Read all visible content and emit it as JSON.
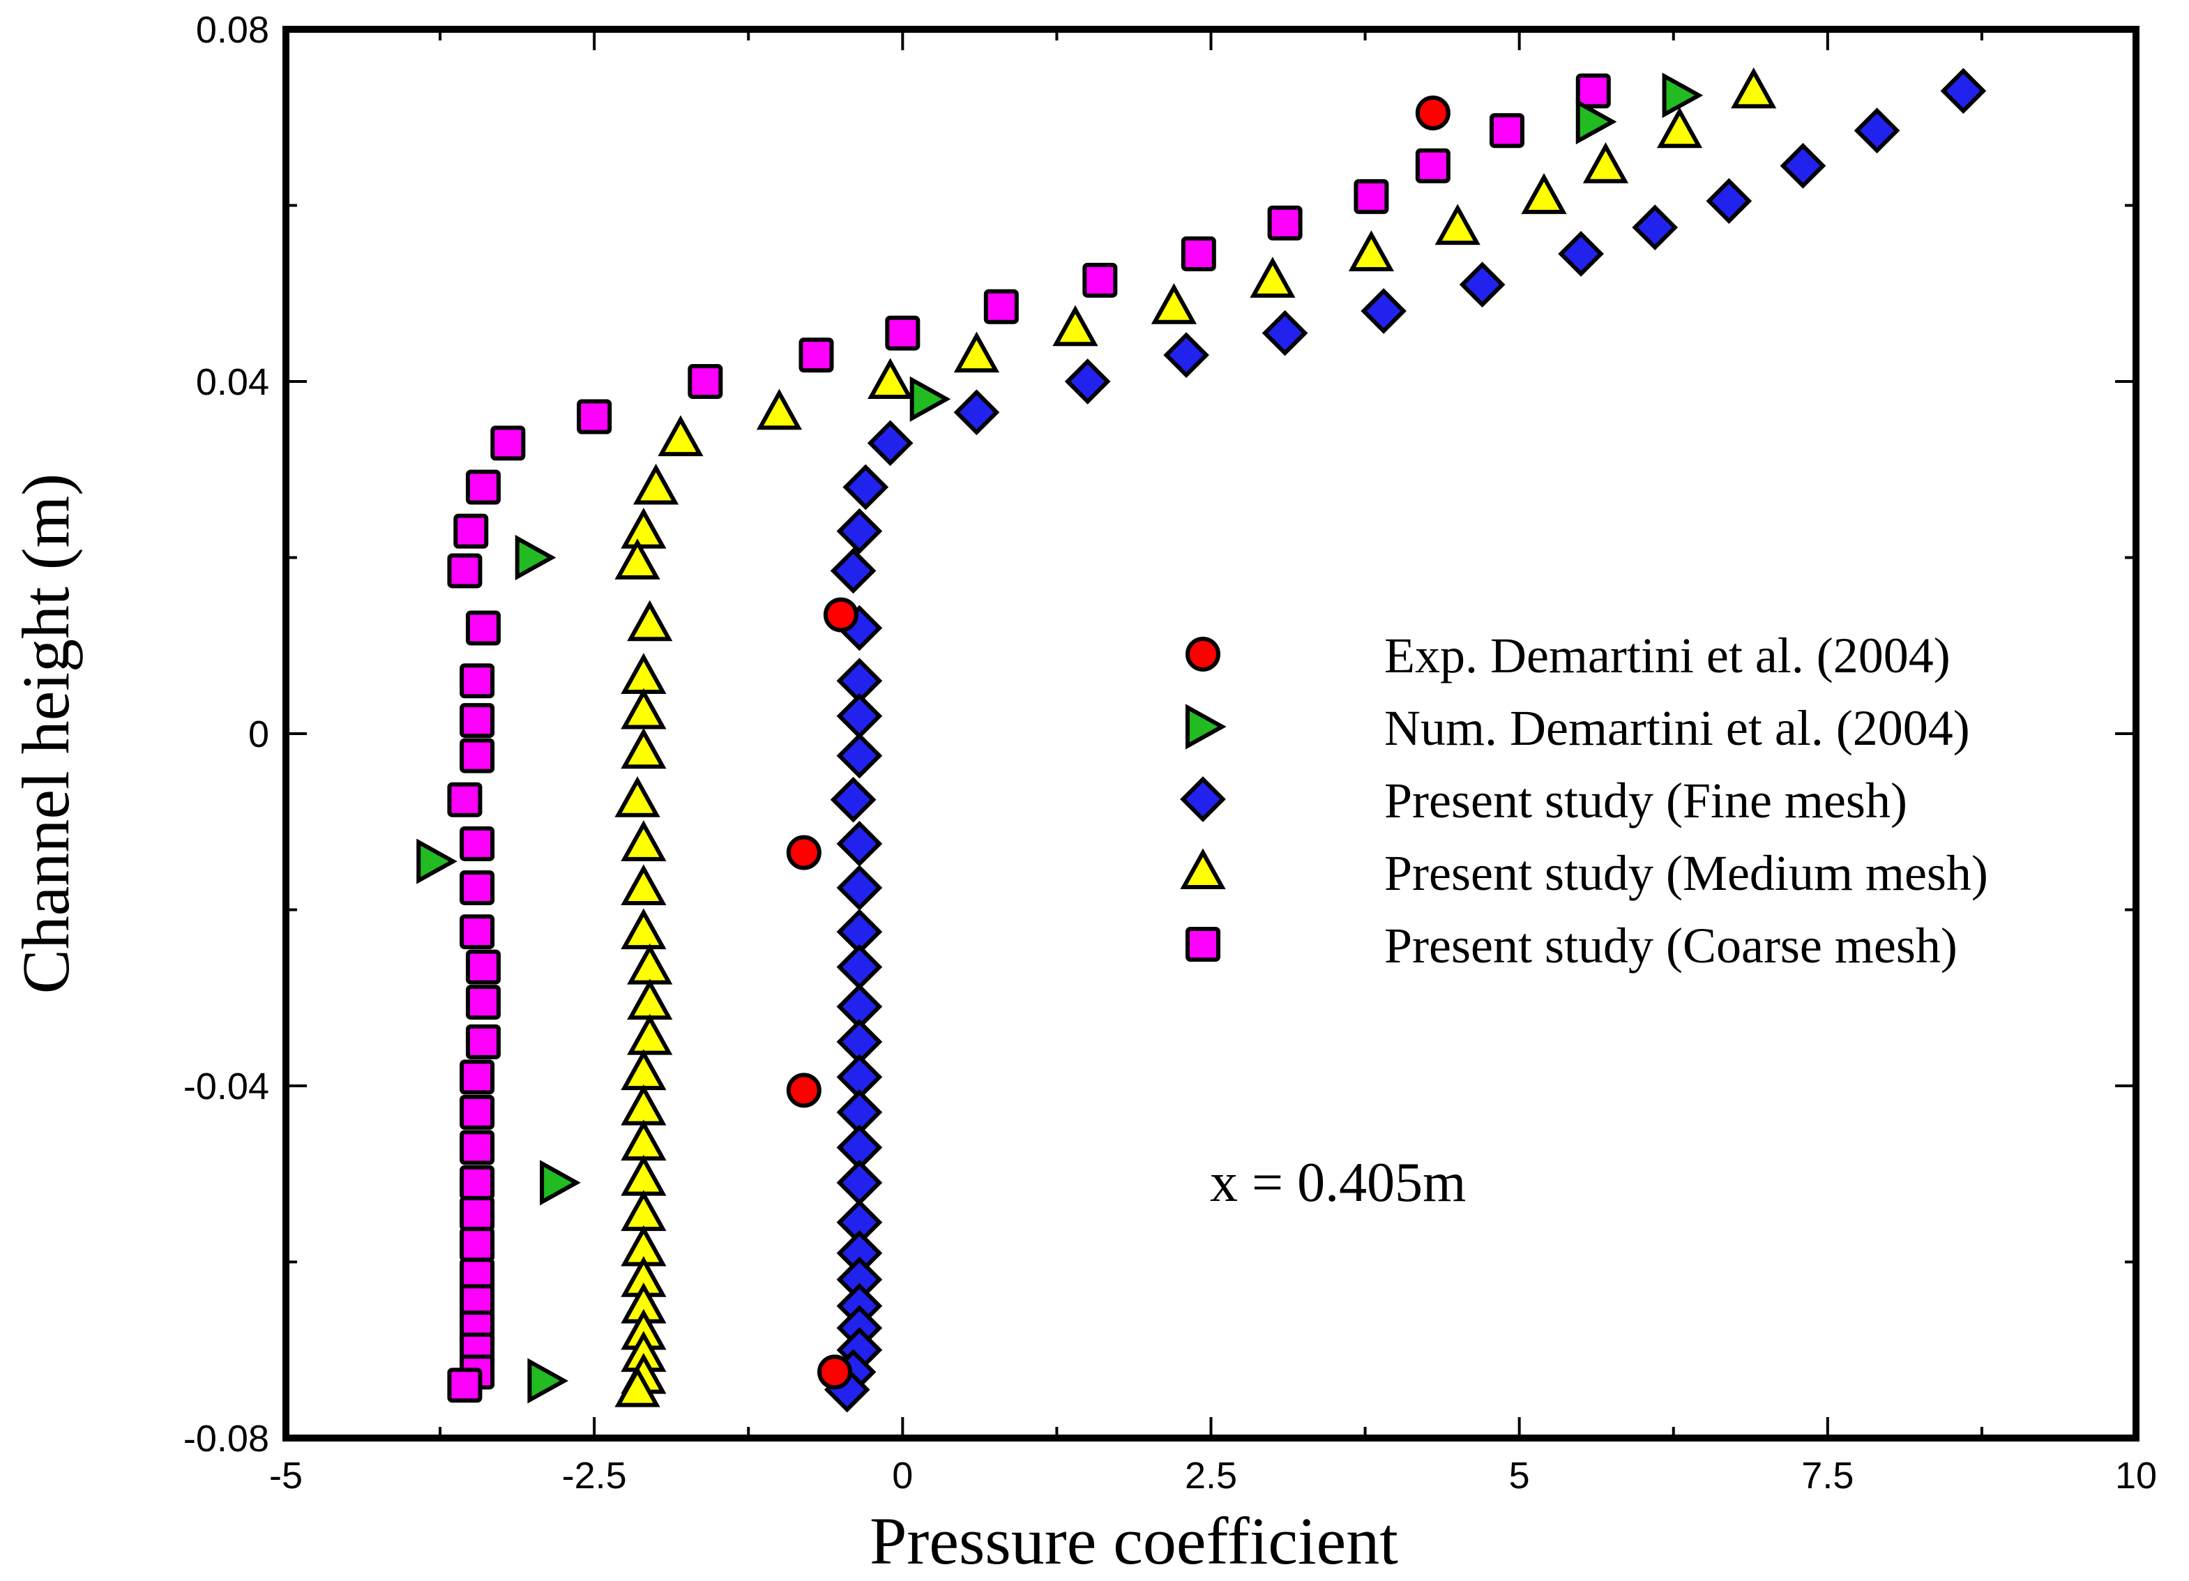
{
  "chart_data": {
    "type": "scatter",
    "title": "",
    "xlabel": "Pressure coefficient",
    "ylabel": "Channel height (m)",
    "xlim": [
      -5,
      10
    ],
    "ylim": [
      -0.08,
      0.08
    ],
    "xticks": [
      -5,
      -2.5,
      0,
      2.5,
      5,
      7.5,
      10
    ],
    "xtick_labels": [
      "-5",
      "-2.5",
      "0",
      "2.5",
      "5",
      "7.5",
      "10"
    ],
    "yticks": [
      -0.08,
      -0.04,
      0,
      0.04,
      0.08
    ],
    "ytick_labels": [
      "-0.08",
      "-0.04",
      "0",
      "0.04",
      "0.08"
    ],
    "annotation": "x = 0.405m",
    "legend_position": "right-middle",
    "series": [
      {
        "name": "Exp. Demartini et al. (2004)",
        "marker": "circle",
        "color": "#ff0000",
        "points": [
          [
            4.3,
            0.0705
          ],
          [
            -0.5,
            0.0135
          ],
          [
            -0.8,
            -0.0135
          ],
          [
            -0.8,
            -0.0405
          ],
          [
            -0.55,
            -0.0725
          ]
        ]
      },
      {
        "name": "Num. Demartini et al. (2004)",
        "marker": "triangle-right",
        "color": "#22bb22",
        "points": [
          [
            6.3,
            0.0725
          ],
          [
            5.6,
            0.0695
          ],
          [
            0.2,
            0.038
          ],
          [
            -3.0,
            0.02
          ],
          [
            -3.8,
            -0.0145
          ],
          [
            -2.8,
            -0.051
          ],
          [
            -2.9,
            -0.0735
          ]
        ]
      },
      {
        "name": "Present study (Fine mesh)",
        "marker": "diamond",
        "color": "#2222ee",
        "points": [
          [
            8.6,
            0.073
          ],
          [
            7.9,
            0.0685
          ],
          [
            7.3,
            0.0645
          ],
          [
            6.7,
            0.0605
          ],
          [
            6.1,
            0.0575
          ],
          [
            5.5,
            0.0545
          ],
          [
            4.7,
            0.051
          ],
          [
            3.9,
            0.048
          ],
          [
            3.1,
            0.0455
          ],
          [
            2.3,
            0.043
          ],
          [
            1.5,
            0.04
          ],
          [
            0.6,
            0.0365
          ],
          [
            -0.1,
            0.033
          ],
          [
            -0.3,
            0.028
          ],
          [
            -0.35,
            0.023
          ],
          [
            -0.4,
            0.0185
          ],
          [
            -0.35,
            0.012
          ],
          [
            -0.35,
            0.006
          ],
          [
            -0.35,
            0.002
          ],
          [
            -0.35,
            -0.0025
          ],
          [
            -0.4,
            -0.0075
          ],
          [
            -0.35,
            -0.0125
          ],
          [
            -0.35,
            -0.0175
          ],
          [
            -0.35,
            -0.0225
          ],
          [
            -0.35,
            -0.0265
          ],
          [
            -0.35,
            -0.031
          ],
          [
            -0.35,
            -0.035
          ],
          [
            -0.35,
            -0.039
          ],
          [
            -0.35,
            -0.043
          ],
          [
            -0.35,
            -0.047
          ],
          [
            -0.35,
            -0.051
          ],
          [
            -0.35,
            -0.0555
          ],
          [
            -0.35,
            -0.059
          ],
          [
            -0.35,
            -0.062
          ],
          [
            -0.35,
            -0.065
          ],
          [
            -0.35,
            -0.0675
          ],
          [
            -0.35,
            -0.07
          ],
          [
            -0.4,
            -0.0725
          ],
          [
            -0.45,
            -0.0745
          ]
        ]
      },
      {
        "name": "Present study (Medium mesh)",
        "marker": "triangle-up",
        "color": "#ffff00",
        "points": [
          [
            6.9,
            0.073
          ],
          [
            6.3,
            0.0685
          ],
          [
            5.7,
            0.0645
          ],
          [
            5.2,
            0.061
          ],
          [
            4.5,
            0.0575
          ],
          [
            3.8,
            0.0545
          ],
          [
            3.0,
            0.0515
          ],
          [
            2.2,
            0.0485
          ],
          [
            1.4,
            0.046
          ],
          [
            0.6,
            0.043
          ],
          [
            -0.1,
            0.04
          ],
          [
            -1.0,
            0.0365
          ],
          [
            -1.8,
            0.0335
          ],
          [
            -2.0,
            0.028
          ],
          [
            -2.1,
            0.023
          ],
          [
            -2.15,
            0.0195
          ],
          [
            -2.05,
            0.0125
          ],
          [
            -2.1,
            0.0065
          ],
          [
            -2.1,
            0.0025
          ],
          [
            -2.1,
            -0.002
          ],
          [
            -2.15,
            -0.0075
          ],
          [
            -2.1,
            -0.0125
          ],
          [
            -2.1,
            -0.0175
          ],
          [
            -2.1,
            -0.0225
          ],
          [
            -2.05,
            -0.0265
          ],
          [
            -2.05,
            -0.0305
          ],
          [
            -2.05,
            -0.0345
          ],
          [
            -2.1,
            -0.0385
          ],
          [
            -2.1,
            -0.0425
          ],
          [
            -2.1,
            -0.0465
          ],
          [
            -2.1,
            -0.0505
          ],
          [
            -2.1,
            -0.0545
          ],
          [
            -2.1,
            -0.0585
          ],
          [
            -2.1,
            -0.062
          ],
          [
            -2.1,
            -0.065
          ],
          [
            -2.1,
            -0.068
          ],
          [
            -2.1,
            -0.0705
          ],
          [
            -2.1,
            -0.073
          ],
          [
            -2.15,
            -0.0745
          ]
        ]
      },
      {
        "name": "Present study (Coarse mesh)",
        "marker": "square",
        "color": "#ff00ff",
        "points": [
          [
            5.6,
            0.073
          ],
          [
            4.9,
            0.0685
          ],
          [
            4.3,
            0.0645
          ],
          [
            3.8,
            0.061
          ],
          [
            3.1,
            0.058
          ],
          [
            2.4,
            0.0545
          ],
          [
            1.6,
            0.0515
          ],
          [
            0.8,
            0.0485
          ],
          [
            0.0,
            0.0455
          ],
          [
            -0.7,
            0.043
          ],
          [
            -1.6,
            0.04
          ],
          [
            -2.5,
            0.036
          ],
          [
            -3.2,
            0.033
          ],
          [
            -3.4,
            0.028
          ],
          [
            -3.5,
            0.023
          ],
          [
            -3.55,
            0.0185
          ],
          [
            -3.4,
            0.012
          ],
          [
            -3.45,
            0.006
          ],
          [
            -3.45,
            0.0015
          ],
          [
            -3.45,
            -0.0025
          ],
          [
            -3.55,
            -0.0075
          ],
          [
            -3.45,
            -0.0125
          ],
          [
            -3.45,
            -0.0175
          ],
          [
            -3.45,
            -0.0225
          ],
          [
            -3.4,
            -0.0265
          ],
          [
            -3.4,
            -0.0305
          ],
          [
            -3.4,
            -0.035
          ],
          [
            -3.45,
            -0.039
          ],
          [
            -3.45,
            -0.043
          ],
          [
            -3.45,
            -0.047
          ],
          [
            -3.45,
            -0.051
          ],
          [
            -3.45,
            -0.0545
          ],
          [
            -3.45,
            -0.058
          ],
          [
            -3.45,
            -0.0615
          ],
          [
            -3.45,
            -0.0645
          ],
          [
            -3.45,
            -0.0675
          ],
          [
            -3.45,
            -0.07
          ],
          [
            -3.45,
            -0.0725
          ],
          [
            -3.55,
            -0.074
          ]
        ]
      }
    ]
  }
}
